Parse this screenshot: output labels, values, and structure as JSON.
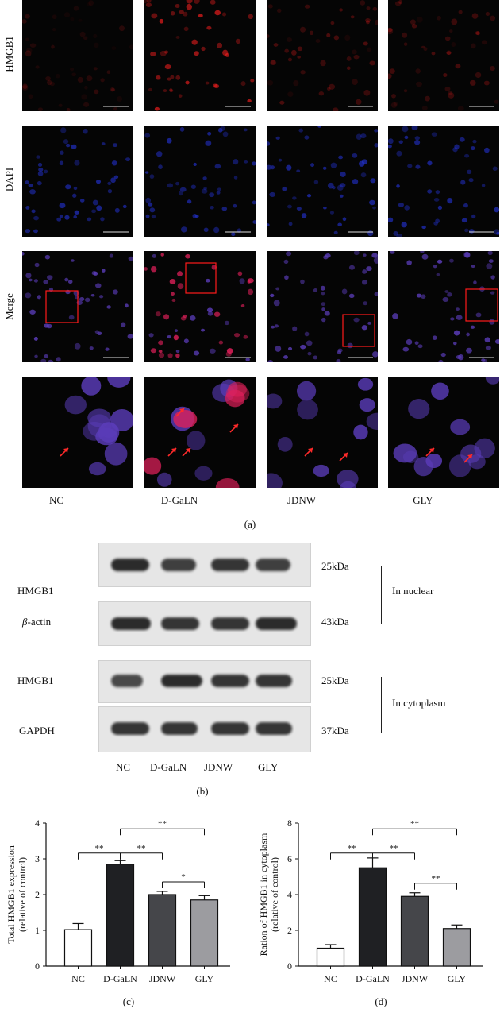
{
  "panel_a": {
    "row_labels": [
      "HMGB1",
      "DAPI",
      "Merge"
    ],
    "columns": [
      "NC",
      "D-GaLN",
      "JDNW",
      "GLY"
    ],
    "caption": "(a)"
  },
  "panel_b": {
    "blots": [
      {
        "label": "HMGB1",
        "size": "25kDa"
      },
      {
        "label": "-actin",
        "prefix": "β",
        "size": "43kDa"
      },
      {
        "label": "HMGB1",
        "size": "25kDa"
      },
      {
        "label": "GAPDH",
        "size": "37kDa"
      }
    ],
    "group_labels": [
      "In nuclear",
      "In cytoplasm"
    ],
    "lanes": [
      "NC",
      "D-GaLN",
      "JDNW",
      "GLY"
    ],
    "caption": "(b)"
  },
  "panel_c": {
    "caption": "(c)"
  },
  "panel_d": {
    "caption": "(d)"
  },
  "chart_data": [
    {
      "type": "bar",
      "categories": [
        "NC",
        "D-GaLN",
        "JDNW",
        "GLY"
      ],
      "values": [
        1.02,
        2.85,
        2.0,
        1.85
      ],
      "errors": [
        0.17,
        0.1,
        0.09,
        0.12
      ],
      "ylabel": "Total HMGB1 expression (relative of control)",
      "ylabel_lines": [
        "Total HMGB1 expression",
        "(relative of control)"
      ],
      "ylim": [
        0,
        4
      ],
      "yticks": [
        0,
        1,
        2,
        3,
        4
      ],
      "bar_colors": [
        "#ffffff",
        "#1f2023",
        "#45464a",
        "#9c9ca0"
      ],
      "significance": [
        {
          "from": 0,
          "to": 1,
          "label": "**"
        },
        {
          "from": 1,
          "to": 2,
          "label": "**"
        },
        {
          "from": 1,
          "to": 3,
          "label": "**"
        },
        {
          "from": 2,
          "to": 3,
          "label": "*"
        }
      ]
    },
    {
      "type": "bar",
      "categories": [
        "NC",
        "D-GaLN",
        "JDNW",
        "GLY"
      ],
      "values": [
        1.0,
        5.5,
        3.9,
        2.1
      ],
      "errors": [
        0.2,
        0.55,
        0.2,
        0.2
      ],
      "ylabel": "Ration of HMGB1 in cytoplasm (relative of control)",
      "ylabel_lines": [
        "Ration of HMGB1 in cytoplasm",
        "(relative of control)"
      ],
      "ylim": [
        0,
        8
      ],
      "yticks": [
        0,
        2,
        4,
        6,
        8
      ],
      "bar_colors": [
        "#ffffff",
        "#1f2023",
        "#45464a",
        "#9c9ca0"
      ],
      "significance": [
        {
          "from": 0,
          "to": 1,
          "label": "**"
        },
        {
          "from": 1,
          "to": 2,
          "label": "**"
        },
        {
          "from": 1,
          "to": 3,
          "label": "**"
        },
        {
          "from": 2,
          "to": 3,
          "label": "**"
        }
      ]
    }
  ]
}
